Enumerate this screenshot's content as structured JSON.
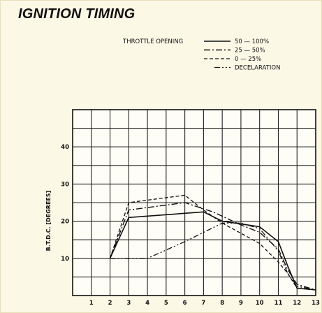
{
  "page": {
    "title": "IGNITION TIMING"
  },
  "chart_data": {
    "type": "line",
    "title": "IGNITION TIMING",
    "legend_title": "THROTTLE OPENING",
    "legend_position": "top-right",
    "xlabel": "",
    "ylabel": "B.T.D.C. [DEGREES]",
    "xlim": [
      0,
      13
    ],
    "ylim": [
      0,
      50
    ],
    "x_ticks": [
      "1",
      "2",
      "3",
      "4",
      "5",
      "6",
      "7",
      "8",
      "9",
      "10",
      "11",
      "12",
      "13"
    ],
    "y_ticks": [
      "10",
      "20",
      "30",
      "40"
    ],
    "grid": true,
    "series": [
      {
        "name": "50 — 100%",
        "style": "solid",
        "points": [
          [
            2,
            10
          ],
          [
            3,
            21
          ],
          [
            7,
            22.5
          ],
          [
            8,
            20
          ],
          [
            10,
            18.5
          ],
          [
            11,
            14.5
          ],
          [
            11.5,
            8
          ],
          [
            12,
            2
          ],
          [
            13,
            1.5
          ]
        ]
      },
      {
        "name": "25 — 50%",
        "style": "dash-dot",
        "points": [
          [
            2,
            10
          ],
          [
            3,
            23
          ],
          [
            6,
            25
          ],
          [
            7.5,
            22.5
          ],
          [
            9,
            19
          ],
          [
            10,
            17
          ],
          [
            11,
            12.5
          ],
          [
            11.5,
            7
          ],
          [
            12,
            3
          ],
          [
            13,
            1.5
          ]
        ]
      },
      {
        "name": "0 — 25%",
        "style": "dashed",
        "points": [
          [
            2,
            10
          ],
          [
            3,
            25
          ],
          [
            6,
            27
          ],
          [
            7,
            23
          ],
          [
            8,
            19.5
          ],
          [
            10,
            14
          ],
          [
            11,
            9
          ],
          [
            11.5,
            6
          ],
          [
            12,
            2
          ],
          [
            13,
            1.5
          ]
        ]
      },
      {
        "name": "DECELARATION",
        "style": "dash-dot-dot",
        "points": [
          [
            2,
            10
          ],
          [
            4,
            10
          ],
          [
            6,
            14.5
          ],
          [
            8,
            19.5
          ],
          [
            9,
            19.5
          ],
          [
            10,
            18
          ],
          [
            11,
            12
          ],
          [
            11.5,
            6
          ],
          [
            12,
            2.5
          ],
          [
            13,
            1.5
          ]
        ]
      }
    ]
  }
}
